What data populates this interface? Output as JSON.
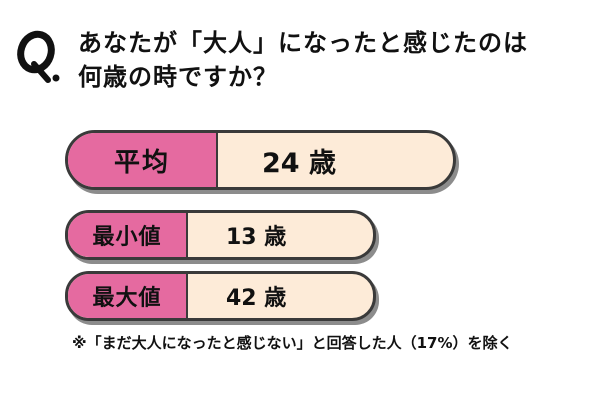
{
  "question": {
    "line1": "あなたが「大人」になったと感じたのは",
    "line2": "何歳の時ですか？"
  },
  "stats": {
    "average": {
      "label": "平均",
      "value": "24 歳"
    },
    "min": {
      "label": "最小値",
      "value": "13 歳"
    },
    "max": {
      "label": "最大値",
      "value": "42 歳"
    }
  },
  "note": "※「まだ大人になったと感じない」と回答した人（17%）を除く",
  "colors": {
    "label_fill": "#e56aa0",
    "value_fill": "#fdebd8",
    "outline": "#3a3a3a"
  },
  "icons": {
    "question_mark": "q-letter-icon"
  }
}
